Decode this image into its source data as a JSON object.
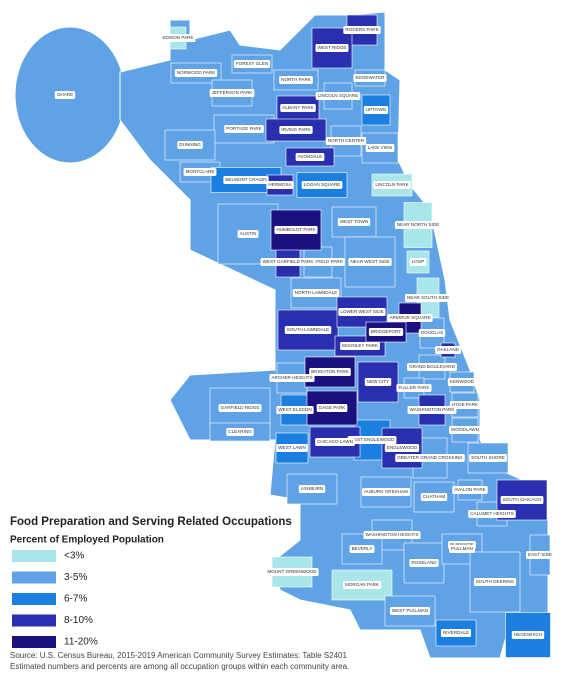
{
  "title": "Food Preparation and Serving Related Occupations",
  "subtitle": "Percent of Employed Population",
  "legend": {
    "items": [
      {
        "label": "<3%",
        "color": "#a8e6ea",
        "areas": [
          "EDISON PARK",
          "LINCOLN PARK",
          "NEAR NORTH SIDE",
          "LOOP",
          "NEAR SOUTH SIDE",
          "BURNSIDE",
          "MOUNT GREENWOOD",
          "MORGAN PARK"
        ]
      },
      {
        "label": "3-5%",
        "color": "#5fa3e6",
        "areas": [
          "OHARE",
          "NORWOOD PARK",
          "FOREST GLEN",
          "NORTH PARK",
          "JEFFERSON PARK",
          "PORTAGE PARK",
          "DUNNING",
          "MONTCLARE",
          "LINCOLN SQUARE",
          "EDGEWATER",
          "NORTH CENTER",
          "LAKE VIEW",
          "AUSTIN",
          "WEST TOWN",
          "NEAR WEST SIDE",
          "EAST GARFIELD PARK",
          "NORTH LAWNDALE",
          "DOUGLAS",
          "GRAND BOULEVARD",
          "KENWOOD",
          "HYDE PARK",
          "WOODLAWN",
          "FULLER PARK",
          "SOUTH SHORE",
          "GREATER GRAND CROSSING",
          "CHATHAM",
          "AVALON PARK",
          "CALUMET HEIGHTS",
          "AUBURN GRESHAM",
          "ASHBURN",
          "ARCHER HEIGHTS",
          "GARFIELD RIDGE",
          "CLEARING",
          "WASHINGTON HEIGHTS",
          "BEVERLY",
          "ROSELAND",
          "PULLMAN",
          "SOUTH DEERING",
          "EAST SIDE",
          "WEST PULLMAN"
        ]
      },
      {
        "label": "6-7%",
        "color": "#1a7fe0",
        "areas": [
          "UPTOWN",
          "LOGAN SQUARE",
          "BELMONT CRAGIN",
          "WEST ELSDON",
          "WEST ENGLEWOOD",
          "WEST LAWN",
          "RIVERDALE",
          "HEGEWISCH"
        ]
      },
      {
        "label": "8-10%",
        "color": "#2a2fb0",
        "areas": [
          "ROGERS PARK",
          "WEST RIDGE",
          "ALBANY PARK",
          "IRVING PARK",
          "AVONDALE",
          "HERMOSA",
          "WEST GARFIELD PARK",
          "SOUTH LAWNDALE",
          "LOWER WEST SIDE",
          "McKINLEY PARK",
          "NEW CITY",
          "CHICAGO LAWN",
          "ENGLEWOOD",
          "OAKLAND",
          "WASHINGTON PARK",
          "SOUTH CHICAGO"
        ]
      },
      {
        "label": "11-20%",
        "color": "#1a1080",
        "areas": [
          "HUMBOLDT PARK",
          "BRIGHTON PARK",
          "GAGE PARK",
          "ARMOUR SQUARE",
          "BRIDGEPORT"
        ]
      }
    ]
  },
  "source": [
    "Source: U.S. Census Bureau, 2015-2019 American Community Survey Estimates: Table S2401",
    "Estimated numbers and percents are among all occupation groups within each community area."
  ]
}
